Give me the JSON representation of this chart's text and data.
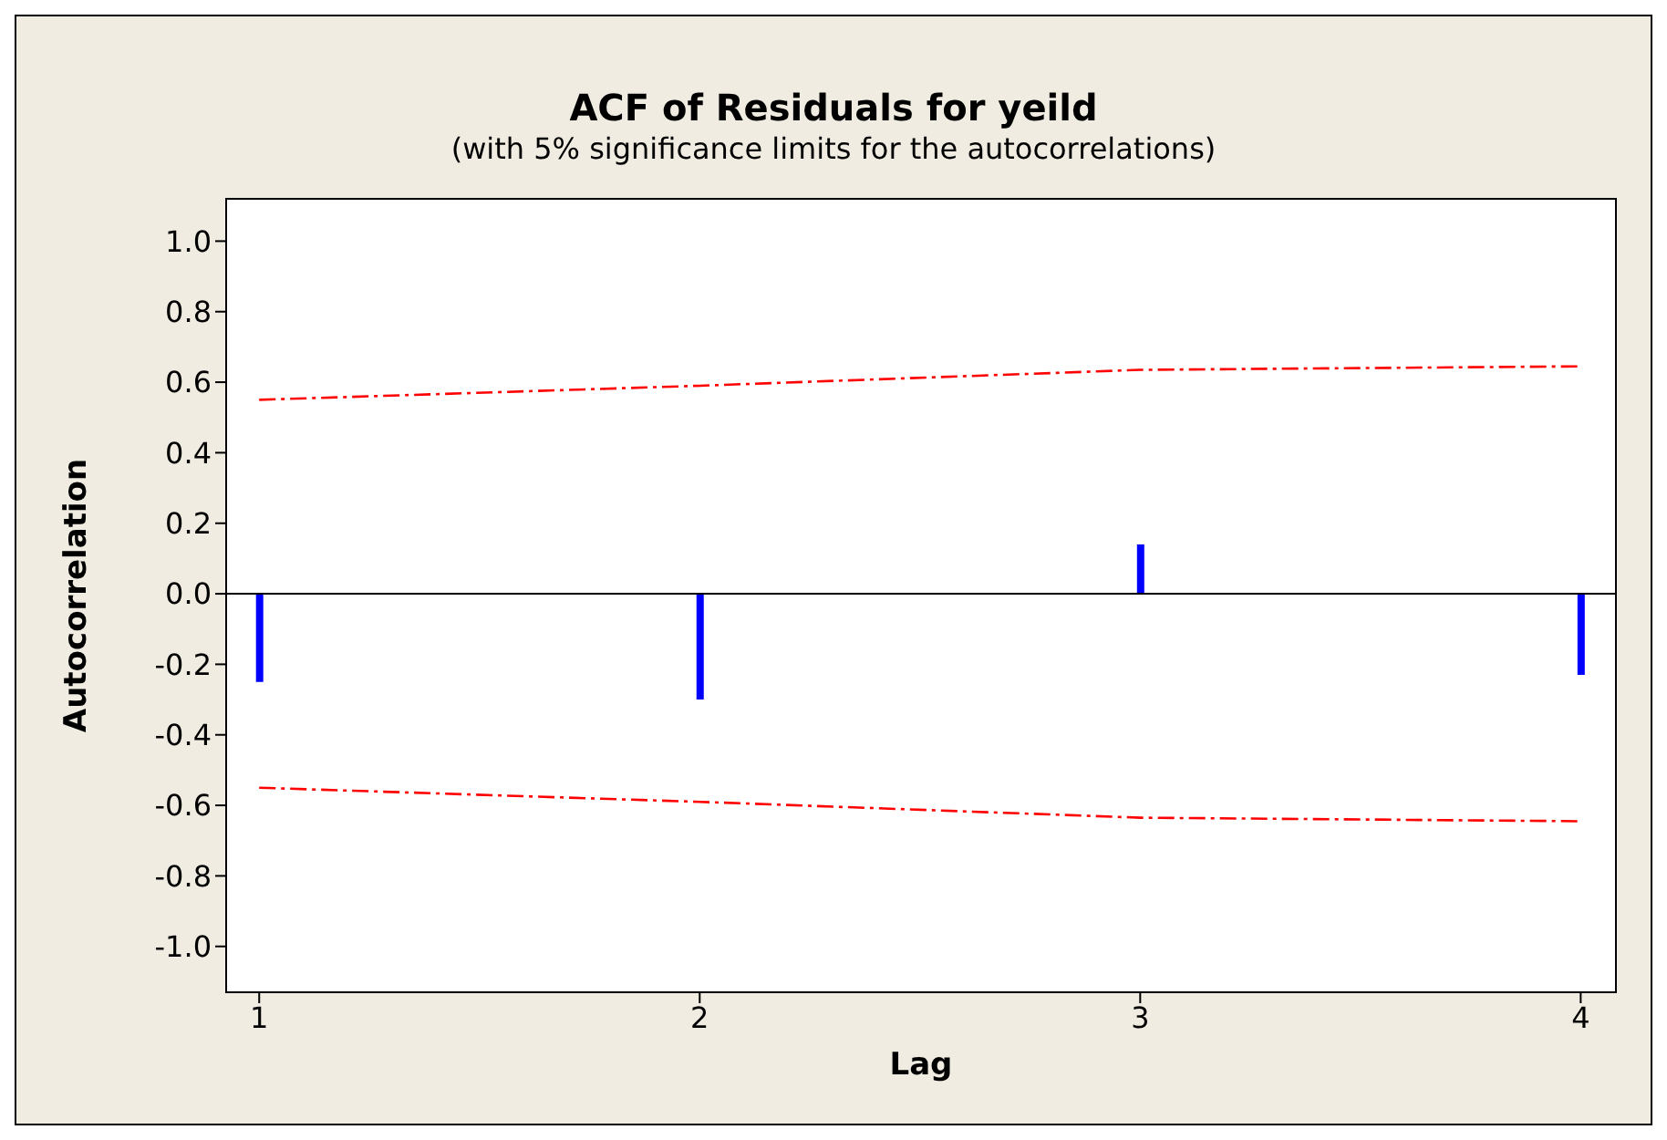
{
  "chart_data": {
    "type": "bar",
    "title": "ACF of Residuals for yeild",
    "subtitle": "(with 5% significance limits for the autocorrelations)",
    "xlabel": "Lag",
    "ylabel": "Autocorrelation",
    "x": [
      1,
      2,
      3,
      4
    ],
    "series": [
      {
        "color": "#0000ff",
        "values": [
          -0.25,
          -0.3,
          0.14,
          -0.23
        ]
      },
      {
        "type": "line",
        "color": "#ff0000",
        "line_style": "dashed",
        "marker": "none",
        "values": [
          0.55,
          0.59,
          0.635,
          0.645
        ]
      },
      {
        "type": "line",
        "color": "#ff0000",
        "line_style": "dashed",
        "marker": "none",
        "values": [
          -0.55,
          -0.59,
          -0.635,
          -0.645
        ]
      }
    ],
    "xlim": [
      0.925,
      4.08
    ],
    "xticks": [
      1,
      2,
      3,
      4
    ],
    "ylim": [
      -1.13,
      1.12
    ],
    "yticks": [
      {
        "value": -1,
        "label": "-1.0"
      },
      {
        "value": -0.8,
        "label": "-0.8"
      },
      {
        "value": -0.6,
        "label": "-0.6"
      },
      {
        "value": -0.4,
        "label": "-0.4"
      },
      {
        "value": -0.2,
        "label": "-0.2"
      },
      {
        "value": 0,
        "label": "0.0"
      },
      {
        "value": 0.2,
        "label": "0.2"
      },
      {
        "value": 0.4,
        "label": "0.4"
      },
      {
        "value": 0.6,
        "label": "0.6"
      },
      {
        "value": 0.8,
        "label": "0.8"
      },
      {
        "value": 1,
        "label": "1.0"
      }
    ],
    "ref_lines": [
      {
        "axis": "y",
        "value": 0,
        "color": "#000000"
      }
    ],
    "legend": false
  }
}
